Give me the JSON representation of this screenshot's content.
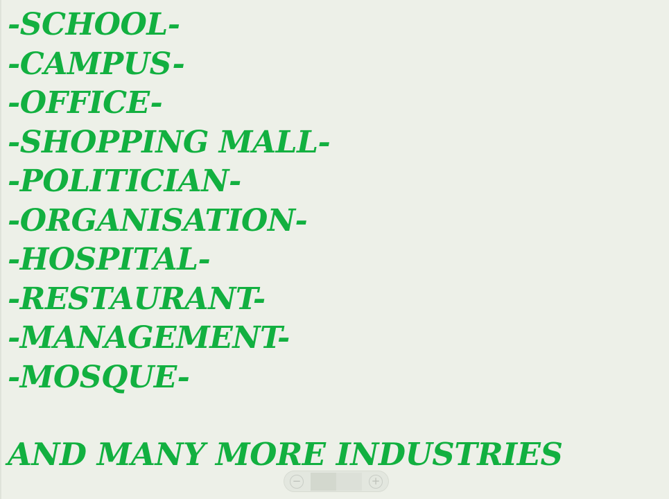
{
  "document": {
    "items": [
      "-SCHOOL-",
      "-CAMPUS-",
      "-OFFICE-",
      "-SHOPPING MALL-",
      "-POLITICIAN-",
      "-ORGANISATION-",
      "-HOSPITAL-",
      "-RESTAURANT-",
      "-MANAGEMENT-",
      "-MOSQUE-"
    ],
    "footer": "AND MANY MORE INDUSTRIES"
  },
  "zoom_control": {
    "zoom_out_icon": "minus-circle-icon",
    "zoom_in_icon": "plus-circle-icon",
    "zoom_out_glyph": "−",
    "zoom_in_glyph": "+",
    "level": 0.5
  },
  "colors": {
    "text": "#12b040",
    "background": "#edf0e8"
  }
}
